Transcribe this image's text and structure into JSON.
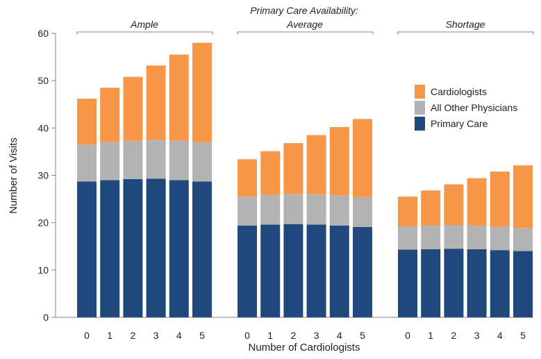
{
  "chart_data": {
    "type": "bar",
    "stacked": true,
    "title": "Primary Care Availability:",
    "xlabel": "Number of Cardiologists",
    "ylabel": "Number of Visits",
    "ylim": [
      0,
      60
    ],
    "yticks": [
      0,
      10,
      20,
      30,
      40,
      50,
      60
    ],
    "categories": [
      "0",
      "1",
      "2",
      "3",
      "4",
      "5"
    ],
    "legend_position": "right",
    "groups": [
      {
        "name": "Ample",
        "series": [
          {
            "name": "Primary Care",
            "values": [
              28.7,
              29.0,
              29.2,
              29.3,
              29.0,
              28.7
            ]
          },
          {
            "name": "All Other Physicians",
            "values": [
              7.8,
              8.0,
              8.1,
              8.2,
              8.3,
              8.3
            ]
          },
          {
            "name": "Cardiologists",
            "values": [
              9.7,
              11.5,
              13.5,
              15.7,
              18.2,
              21.0
            ]
          }
        ]
      },
      {
        "name": "Average",
        "series": [
          {
            "name": "Primary Care",
            "values": [
              19.4,
              19.6,
              19.7,
              19.6,
              19.4,
              19.1
            ]
          },
          {
            "name": "All Other Physicians",
            "values": [
              6.1,
              6.3,
              6.3,
              6.4,
              6.4,
              6.3
            ]
          },
          {
            "name": "Cardiologists",
            "values": [
              7.9,
              9.2,
              10.8,
              12.5,
              14.4,
              16.5
            ]
          }
        ]
      },
      {
        "name": "Shortage",
        "series": [
          {
            "name": "Primary Care",
            "values": [
              14.3,
              14.4,
              14.5,
              14.4,
              14.2,
              14.0
            ]
          },
          {
            "name": "All Other Physicians",
            "values": [
              4.9,
              5.0,
              5.0,
              5.0,
              5.0,
              4.9
            ]
          },
          {
            "name": "Cardiologists",
            "values": [
              6.3,
              7.4,
              8.6,
              10.0,
              11.6,
              13.2
            ]
          }
        ]
      }
    ],
    "legend": [
      "Cardiologists",
      "All Other Physicians",
      "Primary Care"
    ],
    "colors": {
      "Primary Care": "#1f497d",
      "All Other Physicians": "#b3b3b3",
      "Cardiologists": "#f79646"
    }
  }
}
